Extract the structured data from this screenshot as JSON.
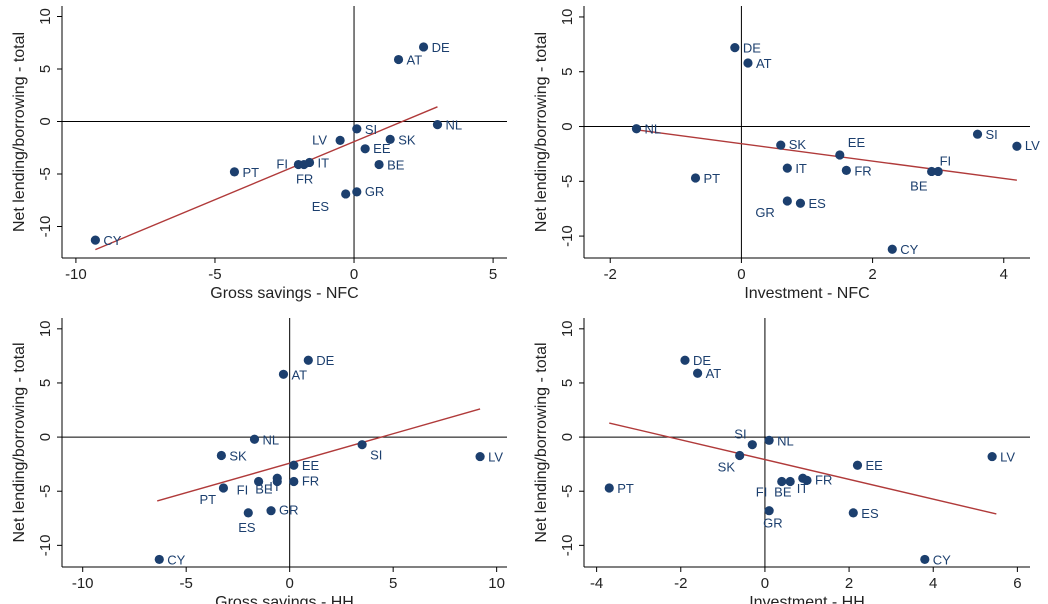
{
  "colors": {
    "points": "#1c3f6e",
    "fit_line": "#b03a3a",
    "axes": "#000000"
  },
  "chart_data": [
    {
      "type": "scatter",
      "xlabel": "Gross savings - NFC",
      "ylabel": "Net lending/borrowing - total",
      "xlim": [
        -10.5,
        5.5
      ],
      "ylim": [
        -13,
        11
      ],
      "xticks": [
        -10,
        -5,
        0,
        5
      ],
      "yticks": [
        10,
        5,
        0,
        -5,
        -10
      ],
      "ref_x": 0,
      "ref_y": 0,
      "fit_line": [
        [
          -9.3,
          -12.2
        ],
        [
          3.0,
          1.4
        ]
      ],
      "points": [
        {
          "label": "DE",
          "x": 2.5,
          "y": 7.1
        },
        {
          "label": "AT",
          "x": 1.6,
          "y": 5.9
        },
        {
          "label": "NL",
          "x": 3.0,
          "y": -0.3
        },
        {
          "label": "SI",
          "x": 0.1,
          "y": -0.7
        },
        {
          "label": "SK",
          "x": 1.3,
          "y": -1.7
        },
        {
          "label": "LV",
          "x": -0.5,
          "y": -1.8
        },
        {
          "label": "EE",
          "x": 0.4,
          "y": -2.6
        },
        {
          "label": "BE",
          "x": 0.9,
          "y": -4.1
        },
        {
          "label": "IT",
          "x": -1.6,
          "y": -3.9
        },
        {
          "label": "FI",
          "x": -2.0,
          "y": -4.1
        },
        {
          "label": "FR",
          "x": -1.8,
          "y": -4.1
        },
        {
          "label": "PT",
          "x": -4.3,
          "y": -4.8
        },
        {
          "label": "GR",
          "x": 0.1,
          "y": -6.7
        },
        {
          "label": "ES",
          "x": -0.3,
          "y": -6.9
        },
        {
          "label": "CY",
          "x": -9.3,
          "y": -11.3
        }
      ]
    },
    {
      "type": "scatter",
      "xlabel": "Investment - NFC",
      "ylabel": "Net lending/borrowing - total",
      "xlim": [
        -2.4,
        4.4
      ],
      "ylim": [
        -12,
        11
      ],
      "xticks": [
        -2,
        0,
        2,
        4
      ],
      "yticks": [
        10,
        5,
        0,
        -5,
        -10
      ],
      "ref_x": 0,
      "ref_y": 0,
      "fit_line": [
        [
          -1.6,
          -0.3
        ],
        [
          4.2,
          -4.9
        ]
      ],
      "points": [
        {
          "label": "DE",
          "x": -0.1,
          "y": 7.2
        },
        {
          "label": "AT",
          "x": 0.1,
          "y": 5.8
        },
        {
          "label": "NL",
          "x": -1.6,
          "y": -0.2
        },
        {
          "label": "SI",
          "x": 3.6,
          "y": -0.7
        },
        {
          "label": "LV",
          "x": 4.2,
          "y": -1.8
        },
        {
          "label": "SK",
          "x": 0.6,
          "y": -1.7
        },
        {
          "label": "EE",
          "x": 1.5,
          "y": -2.6
        },
        {
          "label": "FI",
          "x": 2.9,
          "y": -4.1
        },
        {
          "label": "BE",
          "x": 3.0,
          "y": -4.1
        },
        {
          "label": "IT",
          "x": 0.7,
          "y": -3.8
        },
        {
          "label": "FR",
          "x": 1.6,
          "y": -4.0
        },
        {
          "label": "PT",
          "x": -0.7,
          "y": -4.7
        },
        {
          "label": "GR",
          "x": 0.7,
          "y": -6.8
        },
        {
          "label": "ES",
          "x": 0.9,
          "y": -7.0
        },
        {
          "label": "CY",
          "x": 2.3,
          "y": -11.2
        }
      ]
    },
    {
      "type": "scatter",
      "xlabel": "Gross savings - HH",
      "ylabel": "Net lending/borrowing - total",
      "xlim": [
        -11,
        10.5
      ],
      "ylim": [
        -12,
        11
      ],
      "xticks": [
        -10,
        -5,
        0,
        5,
        10
      ],
      "yticks": [
        10,
        5,
        0,
        -5,
        -10
      ],
      "ref_x": 0,
      "ref_y": 0,
      "fit_line": [
        [
          -6.4,
          -5.9
        ],
        [
          9.2,
          2.6
        ]
      ],
      "points": [
        {
          "label": "DE",
          "x": 0.9,
          "y": 7.1
        },
        {
          "label": "AT",
          "x": -0.3,
          "y": 5.8
        },
        {
          "label": "NL",
          "x": -1.7,
          "y": -0.2
        },
        {
          "label": "SI",
          "x": 3.5,
          "y": -0.7
        },
        {
          "label": "LV",
          "x": 9.2,
          "y": -1.8
        },
        {
          "label": "SK",
          "x": -3.3,
          "y": -1.7
        },
        {
          "label": "EE",
          "x": 0.2,
          "y": -2.6
        },
        {
          "label": "BE",
          "x": -0.6,
          "y": -4.1
        },
        {
          "label": "IT",
          "x": -0.6,
          "y": -3.8
        },
        {
          "label": "FR",
          "x": 0.2,
          "y": -4.1
        },
        {
          "label": "FI",
          "x": -1.5,
          "y": -4.1
        },
        {
          "label": "PT",
          "x": -3.2,
          "y": -4.7
        },
        {
          "label": "GR",
          "x": -0.9,
          "y": -6.8
        },
        {
          "label": "ES",
          "x": -2.0,
          "y": -7.0
        },
        {
          "label": "CY",
          "x": -6.3,
          "y": -11.3
        }
      ]
    },
    {
      "type": "scatter",
      "xlabel": "Investment - HH",
      "ylabel": "Net lending/borrowing - total",
      "xlim": [
        -4.3,
        6.3
      ],
      "ylim": [
        -12,
        11
      ],
      "xticks": [
        -4,
        -2,
        0,
        2,
        4,
        6
      ],
      "yticks": [
        10,
        5,
        0,
        -5,
        -10
      ],
      "ref_x": 0,
      "ref_y": 0,
      "fit_line": [
        [
          -3.7,
          1.3
        ],
        [
          5.5,
          -7.1
        ]
      ],
      "points": [
        {
          "label": "DE",
          "x": -1.9,
          "y": 7.1
        },
        {
          "label": "AT",
          "x": -1.6,
          "y": 5.9
        },
        {
          "label": "NL",
          "x": 0.1,
          "y": -0.3
        },
        {
          "label": "SI",
          "x": -0.3,
          "y": -0.7
        },
        {
          "label": "SK",
          "x": -0.6,
          "y": -1.7
        },
        {
          "label": "LV",
          "x": 5.4,
          "y": -1.8
        },
        {
          "label": "EE",
          "x": 2.2,
          "y": -2.6
        },
        {
          "label": "FI",
          "x": 0.4,
          "y": -4.1
        },
        {
          "label": "BE",
          "x": 0.6,
          "y": -4.1
        },
        {
          "label": "IT",
          "x": 0.9,
          "y": -3.8
        },
        {
          "label": "FR",
          "x": 1.0,
          "y": -4.0
        },
        {
          "label": "PT",
          "x": -3.7,
          "y": -4.7
        },
        {
          "label": "GR",
          "x": 0.1,
          "y": -6.8
        },
        {
          "label": "ES",
          "x": 2.1,
          "y": -7.0
        },
        {
          "label": "CY",
          "x": 3.8,
          "y": -11.3
        }
      ]
    }
  ]
}
